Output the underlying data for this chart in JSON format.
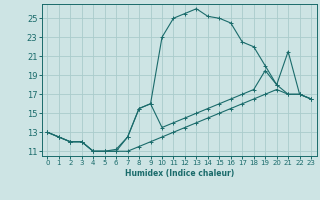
{
  "xlabel": "Humidex (Indice chaleur)",
  "background_color": "#cde4e4",
  "grid_color": "#aacccc",
  "line_color": "#1a6b6b",
  "xlim": [
    -0.5,
    23.5
  ],
  "ylim": [
    10.5,
    26.5
  ],
  "xticks": [
    0,
    1,
    2,
    3,
    4,
    5,
    6,
    7,
    8,
    9,
    10,
    11,
    12,
    13,
    14,
    15,
    16,
    17,
    18,
    19,
    20,
    21,
    22,
    23
  ],
  "yticks": [
    11,
    13,
    15,
    17,
    19,
    21,
    23,
    25
  ],
  "line1_x": [
    0,
    1,
    2,
    3,
    4,
    5,
    6,
    7,
    8,
    9,
    10,
    11,
    12,
    13,
    14,
    15,
    16,
    17,
    18,
    19,
    20,
    21,
    22,
    23
  ],
  "line1_y": [
    13.0,
    12.5,
    12.0,
    12.0,
    11.0,
    11.0,
    11.2,
    12.5,
    15.5,
    16.0,
    23.0,
    25.0,
    25.5,
    26.0,
    25.2,
    25.0,
    24.5,
    22.5,
    22.0,
    20.0,
    18.0,
    21.5,
    17.0,
    16.5
  ],
  "line2_x": [
    0,
    1,
    2,
    3,
    4,
    5,
    6,
    7,
    8,
    9,
    10,
    11,
    12,
    13,
    14,
    15,
    16,
    17,
    18,
    19,
    20,
    21,
    22,
    23
  ],
  "line2_y": [
    13.0,
    12.5,
    12.0,
    12.0,
    11.0,
    11.0,
    11.0,
    11.0,
    11.5,
    12.0,
    12.5,
    13.0,
    13.5,
    14.0,
    14.5,
    15.0,
    15.5,
    16.0,
    16.5,
    17.0,
    17.5,
    17.0,
    17.0,
    16.5
  ],
  "line3_x": [
    0,
    1,
    2,
    3,
    4,
    5,
    6,
    7,
    8,
    9,
    10,
    11,
    12,
    13,
    14,
    15,
    16,
    17,
    18,
    19,
    20,
    21,
    22,
    23
  ],
  "line3_y": [
    13.0,
    12.5,
    12.0,
    12.0,
    11.0,
    11.0,
    11.0,
    12.5,
    15.5,
    16.0,
    13.5,
    14.0,
    14.5,
    15.0,
    15.5,
    16.0,
    16.5,
    17.0,
    17.5,
    19.5,
    18.0,
    17.0,
    17.0,
    16.5
  ]
}
